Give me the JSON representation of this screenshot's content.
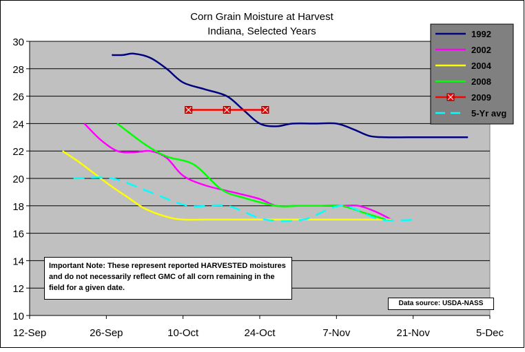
{
  "chart_data": {
    "type": "line",
    "title": "Corn Grain Moisture at Harvest",
    "subtitle": "Indiana, Selected Years",
    "xlabel": "",
    "ylabel": "",
    "xlim": [
      "12-Sep",
      "5-Dec"
    ],
    "ylim": [
      10,
      30
    ],
    "x_ticks": [
      "12-Sep",
      "26-Sep",
      "10-Oct",
      "24-Oct",
      "7-Nov",
      "21-Nov",
      "5-Dec"
    ],
    "y_ticks": [
      10,
      12,
      14,
      16,
      18,
      20,
      22,
      24,
      26,
      28,
      30
    ],
    "grid": "horizontal",
    "legend_position": "top-right",
    "series": [
      {
        "name": "1992",
        "color": "#000080",
        "style": "solid",
        "marker": "none",
        "x": [
          "27-Sep",
          "29-Sep",
          "1-Oct",
          "4-Oct",
          "7-Oct",
          "10-Oct",
          "14-Oct",
          "18-Oct",
          "21-Oct",
          "24-Oct",
          "27-Oct",
          "30-Oct",
          "3-Nov",
          "7-Nov",
          "10-Nov",
          "13-Nov",
          "16-Nov",
          "20-Nov",
          "24-Nov",
          "28-Nov",
          "1-Dec"
        ],
        "y": [
          29.0,
          29.0,
          29.1,
          28.8,
          28.0,
          27.0,
          26.5,
          26.0,
          25.0,
          24.0,
          23.8,
          24.0,
          24.0,
          24.0,
          23.6,
          23.1,
          23.0,
          23.0,
          23.0,
          23.0,
          23.0
        ]
      },
      {
        "name": "2002",
        "color": "#ff00ff",
        "style": "solid",
        "marker": "none",
        "x": [
          "22-Sep",
          "25-Sep",
          "28-Sep",
          "1-Oct",
          "4-Oct",
          "7-Oct",
          "10-Oct",
          "14-Oct",
          "19-Oct",
          "24-Oct",
          "27-Oct",
          "31-Oct",
          "4-Nov",
          "8-Nov",
          "11-Nov",
          "14-Nov",
          "17-Nov"
        ],
        "y": [
          24.0,
          22.8,
          22.0,
          21.9,
          22.0,
          21.5,
          20.2,
          19.5,
          19.0,
          18.5,
          18.0,
          18.0,
          18.0,
          18.0,
          18.0,
          17.6,
          17.0
        ]
      },
      {
        "name": "2004",
        "color": "#ffff00",
        "style": "solid",
        "marker": "none",
        "x": [
          "18-Sep",
          "21-Sep",
          "24-Sep",
          "27-Sep",
          "30-Sep",
          "3-Oct",
          "7-Oct",
          "10-Oct",
          "14-Oct",
          "17-Oct",
          "24-Oct",
          "31-Oct",
          "7-Nov",
          "14-Nov",
          "17-Nov"
        ],
        "y": [
          22.0,
          21.2,
          20.3,
          19.4,
          18.6,
          17.8,
          17.2,
          17.0,
          17.0,
          17.0,
          17.0,
          17.0,
          17.0,
          17.0,
          17.0
        ]
      },
      {
        "name": "2008",
        "color": "#00ff00",
        "style": "solid",
        "marker": "none",
        "x": [
          "28-Sep",
          "3-Oct",
          "7-Oct",
          "12-Oct",
          "17-Oct",
          "21-Oct",
          "27-Oct",
          "31-Oct",
          "4-Nov",
          "8-Nov",
          "12-Nov",
          "16-Nov"
        ],
        "y": [
          24.0,
          22.5,
          21.6,
          21.0,
          19.2,
          18.6,
          18.0,
          18.0,
          18.0,
          18.0,
          17.5,
          17.0
        ]
      },
      {
        "name": "2009",
        "color": "#ff0000",
        "style": "solid",
        "marker": "x-square",
        "x": [
          "11-Oct",
          "18-Oct",
          "25-Oct"
        ],
        "y": [
          25.0,
          25.0,
          25.0
        ]
      },
      {
        "name": "5-Yr avg",
        "color": "#00ffff",
        "style": "dashed",
        "marker": "none",
        "x": [
          "20-Sep",
          "27-Sep",
          "4-Oct",
          "11-Oct",
          "18-Oct",
          "25-Oct",
          "1-Nov",
          "8-Nov",
          "15-Nov",
          "22-Nov"
        ],
        "y": [
          20.0,
          20.0,
          19.0,
          18.0,
          18.0,
          17.0,
          17.0,
          18.0,
          17.0,
          17.0
        ]
      }
    ]
  },
  "note": "Important Note: These represent reported HARVESTED moistures and do not necessarily reflect GMC of all corn remaining in the field for a given date.",
  "source": "Data source: USDA-NASS"
}
